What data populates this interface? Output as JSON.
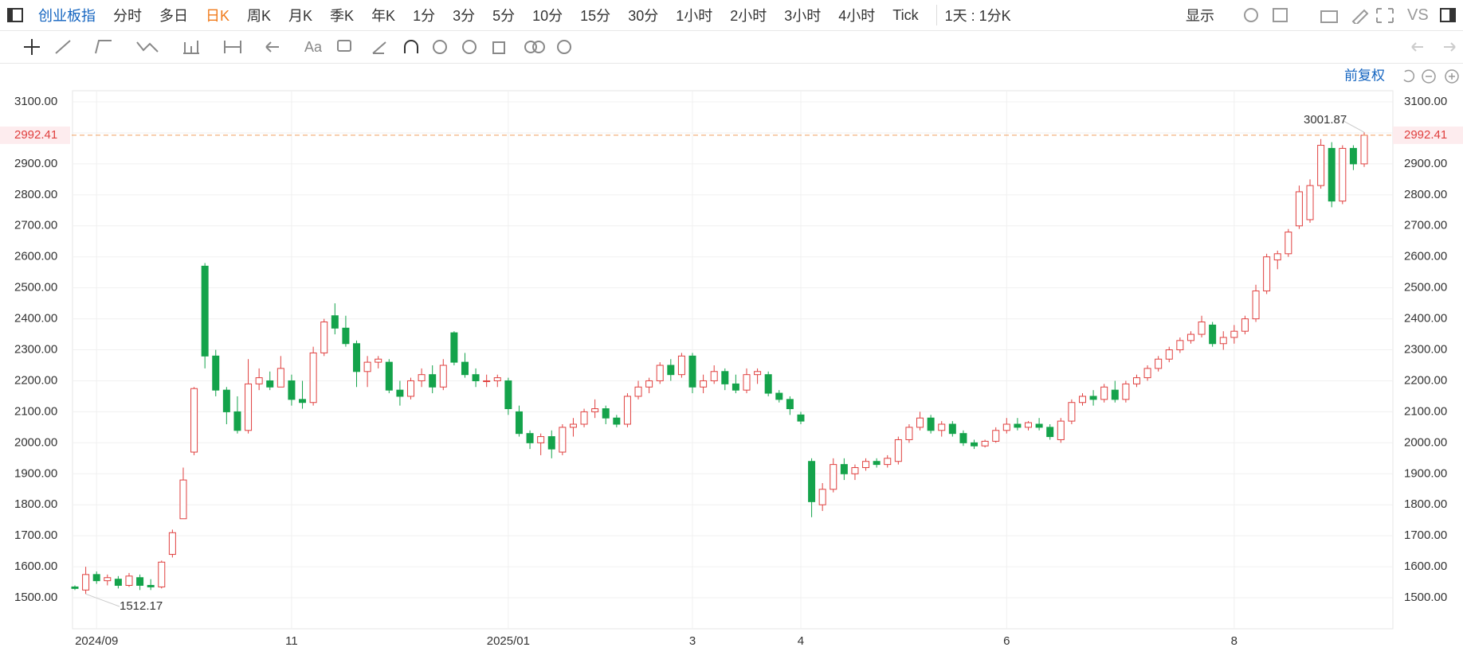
{
  "toolbar": {
    "index_name": "创业板指",
    "periods": [
      "分时",
      "多日",
      "日K",
      "周K",
      "月K",
      "季K",
      "年K",
      "1分",
      "3分",
      "5分",
      "10分",
      "15分",
      "30分",
      "1小时",
      "2小时",
      "3小时",
      "4小时",
      "Tick"
    ],
    "selected": 2,
    "period_combo": "1天 : 1分K",
    "display": "显示",
    "compare": "VS",
    "text_tool": "Aa"
  },
  "chart_data": {
    "type": "candlestick",
    "adjust": "前复权",
    "up_color": "#e0403f",
    "down_color": "#14a34b",
    "price_line_color": "#f0a060",
    "ylim": [
      1400,
      3136
    ],
    "yticks": [
      {
        "value": 1500,
        "label": "1500.00"
      },
      {
        "value": 1600,
        "label": "1600.00"
      },
      {
        "value": 1700,
        "label": "1700.00"
      },
      {
        "value": 1800,
        "label": "1800.00"
      },
      {
        "value": 1900,
        "label": "1900.00"
      },
      {
        "value": 2000,
        "label": "2000.00"
      },
      {
        "value": 2100,
        "label": "2100.00"
      },
      {
        "value": 2200,
        "label": "2200.00"
      },
      {
        "value": 2300,
        "label": "2300.00"
      },
      {
        "value": 2400,
        "label": "2400.00"
      },
      {
        "value": 2500,
        "label": "2500.00"
      },
      {
        "value": 2600,
        "label": "2600.00"
      },
      {
        "value": 2700,
        "label": "2700.00"
      },
      {
        "value": 2800,
        "label": "2800.00"
      },
      {
        "value": 2900,
        "label": "2900.00"
      },
      {
        "value": 3000,
        "label": "3000.00"
      },
      {
        "value": 3100,
        "label": "3100.00"
      }
    ],
    "xticks": [
      {
        "value": 2,
        "label": "2024/09"
      },
      {
        "value": 20,
        "label": "11"
      },
      {
        "value": 40,
        "label": "2025/01"
      },
      {
        "value": 57,
        "label": "3"
      },
      {
        "value": 67,
        "label": "4"
      },
      {
        "value": 86,
        "label": "6"
      },
      {
        "value": 107,
        "label": "8"
      }
    ],
    "candles": [
      [
        1535,
        1540,
        1525,
        1530
      ],
      [
        1525,
        1600,
        1512.17,
        1575
      ],
      [
        1575,
        1585,
        1545,
        1555
      ],
      [
        1555,
        1575,
        1540,
        1565
      ],
      [
        1560,
        1570,
        1530,
        1540
      ],
      [
        1540,
        1580,
        1535,
        1570
      ],
      [
        1565,
        1575,
        1525,
        1540
      ],
      [
        1540,
        1560,
        1525,
        1535
      ],
      [
        1535,
        1620,
        1530,
        1615
      ],
      [
        1640,
        1720,
        1630,
        1710
      ],
      [
        1755,
        1920,
        1755,
        1880
      ],
      [
        1970,
        2180,
        1960,
        2175
      ],
      [
        2570,
        2580,
        2240,
        2280
      ],
      [
        2280,
        2300,
        2150,
        2170
      ],
      [
        2170,
        2180,
        2060,
        2100
      ],
      [
        2100,
        2150,
        2030,
        2040
      ],
      [
        2040,
        2270,
        2030,
        2190
      ],
      [
        2190,
        2240,
        2170,
        2210
      ],
      [
        2200,
        2230,
        2170,
        2180
      ],
      [
        2180,
        2280,
        2180,
        2240
      ],
      [
        2200,
        2220,
        2120,
        2140
      ],
      [
        2140,
        2200,
        2110,
        2130
      ],
      [
        2130,
        2310,
        2120,
        2290
      ],
      [
        2290,
        2400,
        2280,
        2390
      ],
      [
        2410,
        2450,
        2350,
        2370
      ],
      [
        2370,
        2410,
        2310,
        2320
      ],
      [
        2320,
        2330,
        2180,
        2230
      ],
      [
        2230,
        2280,
        2180,
        2260
      ],
      [
        2260,
        2280,
        2240,
        2270
      ],
      [
        2260,
        2270,
        2160,
        2170
      ],
      [
        2170,
        2200,
        2120,
        2150
      ],
      [
        2150,
        2210,
        2140,
        2200
      ],
      [
        2200,
        2240,
        2180,
        2220
      ],
      [
        2220,
        2250,
        2160,
        2180
      ],
      [
        2180,
        2270,
        2170,
        2250
      ],
      [
        2355,
        2360,
        2250,
        2260
      ],
      [
        2260,
        2290,
        2210,
        2220
      ],
      [
        2220,
        2240,
        2180,
        2200
      ],
      [
        2200,
        2220,
        2180,
        2200
      ],
      [
        2200,
        2220,
        2180,
        2210
      ],
      [
        2200,
        2210,
        2090,
        2110
      ],
      [
        2100,
        2120,
        2020,
        2030
      ],
      [
        2030,
        2040,
        1980,
        2000
      ],
      [
        2000,
        2030,
        1960,
        2020
      ],
      [
        2020,
        2040,
        1950,
        1980
      ],
      [
        1970,
        2060,
        1960,
        2050
      ],
      [
        2050,
        2080,
        2020,
        2060
      ],
      [
        2060,
        2110,
        2050,
        2100
      ],
      [
        2100,
        2140,
        2080,
        2110
      ],
      [
        2110,
        2120,
        2060,
        2080
      ],
      [
        2080,
        2090,
        2050,
        2060
      ],
      [
        2060,
        2160,
        2050,
        2150
      ],
      [
        2150,
        2200,
        2140,
        2180
      ],
      [
        2180,
        2210,
        2160,
        2200
      ],
      [
        2200,
        2260,
        2190,
        2250
      ],
      [
        2250,
        2270,
        2200,
        2220
      ],
      [
        2220,
        2290,
        2210,
        2280
      ],
      [
        2280,
        2290,
        2160,
        2180
      ],
      [
        2180,
        2220,
        2160,
        2200
      ],
      [
        2200,
        2250,
        2190,
        2230
      ],
      [
        2230,
        2240,
        2170,
        2190
      ],
      [
        2190,
        2220,
        2160,
        2170
      ],
      [
        2170,
        2240,
        2160,
        2220
      ],
      [
        2220,
        2240,
        2190,
        2230
      ],
      [
        2220,
        2230,
        2150,
        2160
      ],
      [
        2160,
        2170,
        2130,
        2140
      ],
      [
        2140,
        2150,
        2090,
        2110
      ],
      [
        2090,
        2100,
        2060,
        2070
      ],
      [
        1940,
        1950,
        1760,
        1810
      ],
      [
        1800,
        1870,
        1780,
        1850
      ],
      [
        1850,
        1950,
        1840,
        1930
      ],
      [
        1930,
        1950,
        1880,
        1900
      ],
      [
        1900,
        1930,
        1880,
        1920
      ],
      [
        1920,
        1950,
        1910,
        1940
      ],
      [
        1940,
        1950,
        1920,
        1930
      ],
      [
        1930,
        1960,
        1920,
        1950
      ],
      [
        1940,
        2020,
        1930,
        2010
      ],
      [
        2010,
        2060,
        2000,
        2050
      ],
      [
        2050,
        2100,
        2040,
        2080
      ],
      [
        2080,
        2090,
        2030,
        2040
      ],
      [
        2040,
        2070,
        2020,
        2060
      ],
      [
        2060,
        2070,
        2020,
        2030
      ],
      [
        2030,
        2040,
        1990,
        2000
      ],
      [
        2000,
        2010,
        1980,
        1990
      ],
      [
        1990,
        2010,
        1985,
        2005
      ],
      [
        2005,
        2050,
        2000,
        2040
      ],
      [
        2040,
        2080,
        2030,
        2060
      ],
      [
        2060,
        2080,
        2040,
        2050
      ],
      [
        2050,
        2070,
        2040,
        2065
      ],
      [
        2060,
        2080,
        2040,
        2050
      ],
      [
        2050,
        2060,
        2010,
        2020
      ],
      [
        2010,
        2080,
        2000,
        2070
      ],
      [
        2070,
        2140,
        2060,
        2130
      ],
      [
        2130,
        2160,
        2120,
        2150
      ],
      [
        2150,
        2170,
        2120,
        2140
      ],
      [
        2140,
        2190,
        2130,
        2180
      ],
      [
        2170,
        2200,
        2130,
        2140
      ],
      [
        2140,
        2200,
        2130,
        2190
      ],
      [
        2190,
        2220,
        2180,
        2210
      ],
      [
        2210,
        2250,
        2200,
        2240
      ],
      [
        2240,
        2280,
        2230,
        2270
      ],
      [
        2270,
        2310,
        2260,
        2300
      ],
      [
        2300,
        2340,
        2290,
        2330
      ],
      [
        2330,
        2360,
        2320,
        2350
      ],
      [
        2350,
        2410,
        2340,
        2390
      ],
      [
        2380,
        2390,
        2310,
        2320
      ],
      [
        2320,
        2360,
        2300,
        2340
      ],
      [
        2340,
        2380,
        2320,
        2360
      ],
      [
        2360,
        2410,
        2350,
        2400
      ],
      [
        2400,
        2510,
        2390,
        2490
      ],
      [
        2490,
        2610,
        2480,
        2600
      ],
      [
        2590,
        2620,
        2560,
        2610
      ],
      [
        2610,
        2690,
        2600,
        2680
      ],
      [
        2700,
        2830,
        2690,
        2810
      ],
      [
        2720,
        2850,
        2710,
        2830
      ],
      [
        2830,
        2980,
        2820,
        2960
      ],
      [
        2950,
        2970,
        2760,
        2780
      ],
      [
        2780,
        2960,
        2770,
        2950
      ],
      [
        2950,
        2960,
        2880,
        2900
      ],
      [
        2900,
        3001.87,
        2890,
        2992.41
      ]
    ]
  }
}
